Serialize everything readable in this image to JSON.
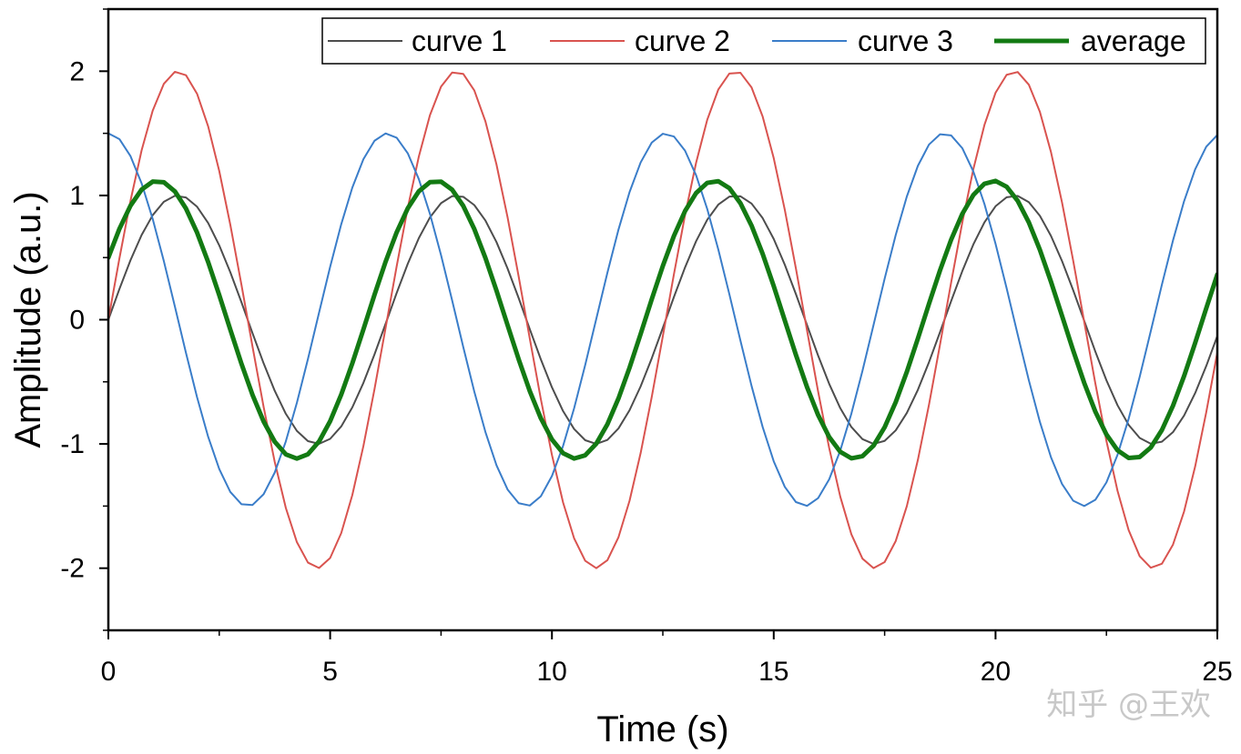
{
  "chart_data": {
    "type": "line",
    "title": "",
    "xlabel": "Time (s)",
    "ylabel": "Amplitude (a.u.)",
    "xlim": [
      0,
      25
    ],
    "ylim": [
      -2.5,
      2.5
    ],
    "x_ticks": [
      0,
      5,
      10,
      15,
      20,
      25
    ],
    "x_tick_labels": [
      "0",
      "5",
      "10",
      "15",
      "20",
      "25"
    ],
    "y_ticks": [
      -2,
      -1,
      0,
      1,
      2
    ],
    "y_tick_labels": [
      "-2",
      "-1",
      "0",
      "1",
      "2"
    ],
    "grid": false,
    "legend_placement": "top-right",
    "x_sample_step": 0.25,
    "series": [
      {
        "name": "curve 1",
        "color": "#4d4d4d",
        "formula": "sin(t)",
        "amplitude": 1.0,
        "period": 6.283,
        "phase": 0
      },
      {
        "name": "curve 2",
        "color": "#d9534f",
        "formula": "2 sin(t)",
        "amplitude": 2.0,
        "period": 6.283,
        "phase": 0
      },
      {
        "name": "curve 3",
        "color": "#3a7dc9",
        "formula": "1.5 cos(t)",
        "amplitude": 1.5,
        "period": 6.283,
        "phase": 1.5708
      },
      {
        "name": "average",
        "color": "#137a13",
        "formula": "(sin(t) + 2 sin(t) + 1.5 cos(t)) / 3",
        "amplitude": 1.118,
        "period": 6.283,
        "phase": 0.4636
      }
    ]
  },
  "watermark": "知乎 @王欢"
}
